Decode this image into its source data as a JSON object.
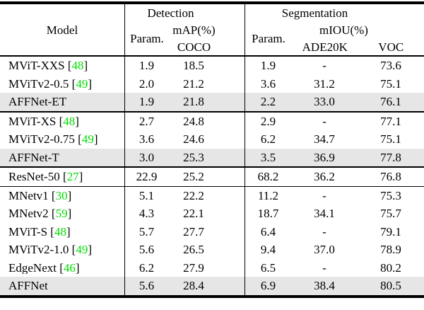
{
  "table": {
    "header": {
      "model_label": "Model",
      "detection": {
        "title": "Detection",
        "param_label": "Param.",
        "metric_line1": "mAP(%)",
        "metric_line2": "COCO"
      },
      "segmentation": {
        "title": "Segmentation",
        "param_label": "Param.",
        "metric_label": "mIOU(%)",
        "dataset_ade20k": "ADE20K",
        "dataset_voc": "VOC"
      }
    },
    "columns": [
      "Model",
      "Detection Param.",
      "Detection mAP(%) COCO",
      "Segmentation Param.",
      "Segmentation mIOU(%) ADE20K",
      "Segmentation mIOU(%) VOC"
    ],
    "groups": [
      {
        "separator_after": "double",
        "rows": [
          {
            "name": "MViT-XXS",
            "citation": "48",
            "highlighted": false,
            "det_param": "1.9",
            "det_map_coco": "18.5",
            "seg_param": "1.9",
            "seg_miou_ade20k": "-",
            "seg_miou_voc": "73.6"
          },
          {
            "name": "MViTv2-0.5",
            "citation": "49",
            "highlighted": false,
            "det_param": "2.0",
            "det_map_coco": "21.2",
            "seg_param": "3.6",
            "seg_miou_ade20k": "31.2",
            "seg_miou_voc": "75.1"
          },
          {
            "name": "AFFNet-ET",
            "citation": null,
            "highlighted": true,
            "det_param": "1.9",
            "det_map_coco": "21.8",
            "seg_param": "2.2",
            "seg_miou_ade20k": "33.0",
            "seg_miou_voc": "76.1"
          }
        ]
      },
      {
        "separator_after": "double",
        "rows": [
          {
            "name": "MViT-XS",
            "citation": "48",
            "highlighted": false,
            "det_param": "2.7",
            "det_map_coco": "24.8",
            "seg_param": "2.9",
            "seg_miou_ade20k": "-",
            "seg_miou_voc": "77.1"
          },
          {
            "name": "MViTv2-0.75",
            "citation": "49",
            "highlighted": false,
            "det_param": "3.6",
            "det_map_coco": "24.6",
            "seg_param": "6.2",
            "seg_miou_ade20k": "34.7",
            "seg_miou_voc": "75.1"
          },
          {
            "name": "AFFNet-T",
            "citation": null,
            "highlighted": true,
            "det_param": "3.0",
            "det_map_coco": "25.3",
            "seg_param": "3.5",
            "seg_miou_ade20k": "36.9",
            "seg_miou_voc": "77.8"
          }
        ]
      },
      {
        "separator_after": "single",
        "rows": [
          {
            "name": "ResNet-50",
            "citation": "27",
            "highlighted": false,
            "det_param": "22.9",
            "det_map_coco": "25.2",
            "seg_param": "68.2",
            "seg_miou_ade20k": "36.2",
            "seg_miou_voc": "76.8"
          }
        ]
      },
      {
        "separator_after": null,
        "rows": [
          {
            "name": "MNetv1",
            "citation": "30",
            "highlighted": false,
            "det_param": "5.1",
            "det_map_coco": "22.2",
            "seg_param": "11.2",
            "seg_miou_ade20k": "-",
            "seg_miou_voc": "75.3"
          },
          {
            "name": "MNetv2",
            "citation": "59",
            "highlighted": false,
            "det_param": "4.3",
            "det_map_coco": "22.1",
            "seg_param": "18.7",
            "seg_miou_ade20k": "34.1",
            "seg_miou_voc": "75.7"
          },
          {
            "name": "MViT-S",
            "citation": "48",
            "highlighted": false,
            "det_param": "5.7",
            "det_map_coco": "27.7",
            "seg_param": "6.4",
            "seg_miou_ade20k": "-",
            "seg_miou_voc": "79.1"
          },
          {
            "name": "MViTv2-1.0",
            "citation": "49",
            "highlighted": false,
            "det_param": "5.6",
            "det_map_coco": "26.5",
            "seg_param": "9.4",
            "seg_miou_ade20k": "37.0",
            "seg_miou_voc": "78.9"
          },
          {
            "name": "EdgeNext",
            "citation": "46",
            "highlighted": false,
            "det_param": "6.2",
            "det_map_coco": "27.9",
            "seg_param": "6.5",
            "seg_miou_ade20k": "-",
            "seg_miou_voc": "80.2"
          },
          {
            "name": "AFFNet",
            "citation": null,
            "highlighted": true,
            "det_param": "5.6",
            "det_map_coco": "28.4",
            "seg_param": "6.9",
            "seg_miou_ade20k": "38.4",
            "seg_miou_voc": "80.5"
          }
        ]
      }
    ],
    "colors": {
      "citation_green": "#00dd00",
      "highlight_gray": "#e6e6e6",
      "rule_black": "#000000",
      "background": "#ffffff"
    }
  }
}
